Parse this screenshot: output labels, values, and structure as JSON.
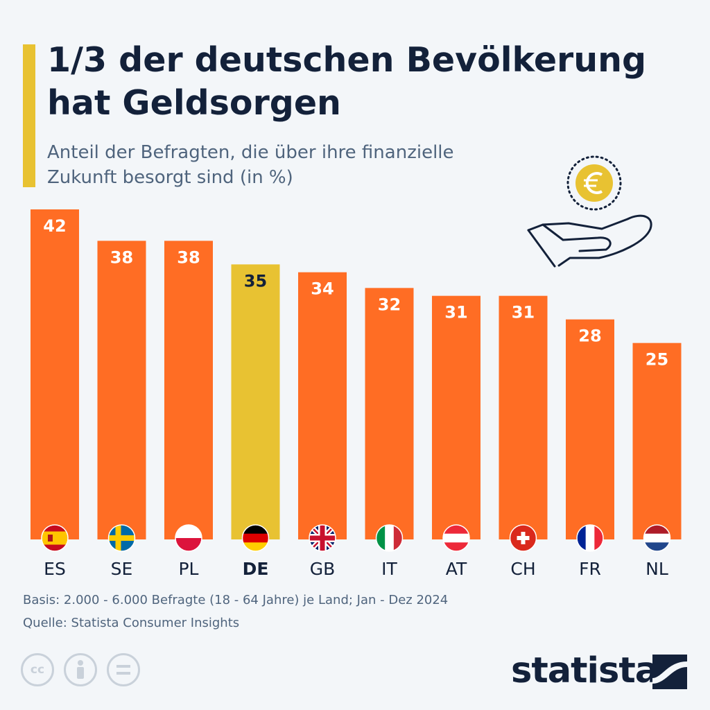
{
  "header": {
    "title": "1/3 der deutschen Bevölkerung hat Geldsorgen",
    "subtitle": "Anteil der Befragten, die über ihre finanzielle Zukunft besorgt sind (in %)"
  },
  "chart_data": {
    "type": "bar",
    "categories": [
      "ES",
      "SE",
      "PL",
      "DE",
      "GB",
      "IT",
      "AT",
      "CH",
      "FR",
      "NL"
    ],
    "values": [
      42,
      38,
      38,
      35,
      34,
      32,
      31,
      31,
      28,
      25
    ],
    "highlight": "DE",
    "title": "1/3 der deutschen Bevölkerung hat Geldsorgen",
    "ylabel": "",
    "xlabel": "",
    "ylim": [
      0,
      42
    ],
    "grid": false,
    "colors": {
      "bar": "#ff6d24",
      "highlight": "#e8c232",
      "label_light": "#ffffff",
      "label_dark": "#13213a"
    }
  },
  "footer": {
    "basis": "Basis: 2.000 - 6.000 Befragte (18 - 64 Jahre) je Land; Jan - Dez 2024",
    "source": "Quelle: Statista Consumer Insights"
  },
  "brand": {
    "logo_text": "statista"
  },
  "icons": [
    "euro-coin-icon",
    "open-hand-icon",
    "cc-icon",
    "by-person-icon",
    "nd-equals-icon",
    "flag-icons"
  ],
  "license": {
    "cc": "cc"
  }
}
